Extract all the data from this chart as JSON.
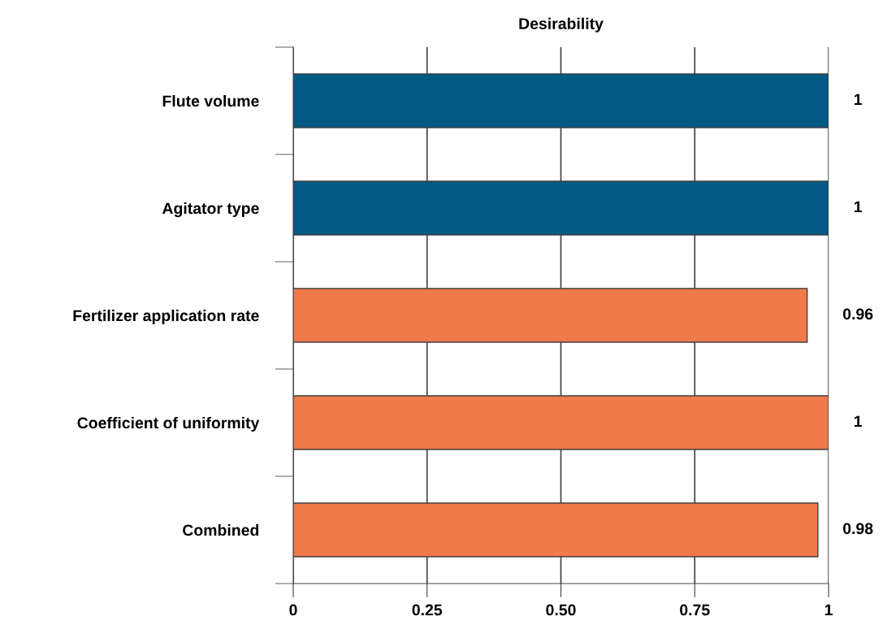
{
  "chart_data": {
    "type": "bar",
    "orientation": "horizontal",
    "title": "Desirability",
    "categories": [
      "Flute volume",
      "Agitator type",
      "Fertilizer application rate",
      "Coefficient of uniformity",
      "Combined"
    ],
    "values": [
      1,
      1,
      0.96,
      1,
      0.98
    ],
    "colors": [
      "#005a84",
      "#005a84",
      "#f07a4a",
      "#f07a4a",
      "#f07a4a"
    ],
    "xlim": [
      0,
      1
    ],
    "xticks": [
      0,
      0.25,
      {
        "value": 0.5,
        "label": "0.50"
      },
      0.75,
      1
    ],
    "grid": "x",
    "data_labels": true
  }
}
